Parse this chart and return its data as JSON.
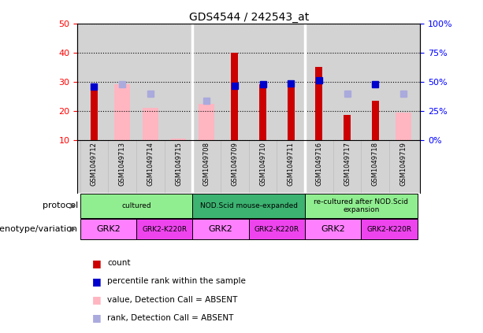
{
  "title": "GDS4544 / 242543_at",
  "samples": [
    "GSM1049712",
    "GSM1049713",
    "GSM1049714",
    "GSM1049715",
    "GSM1049708",
    "GSM1049709",
    "GSM1049710",
    "GSM1049711",
    "GSM1049716",
    "GSM1049717",
    "GSM1049718",
    "GSM1049719"
  ],
  "count_values": [
    27.5,
    null,
    null,
    null,
    null,
    40.0,
    29.0,
    29.5,
    35.0,
    18.5,
    23.5,
    null
  ],
  "rank_values": [
    28.2,
    null,
    null,
    null,
    null,
    28.5,
    29.2,
    29.5,
    30.5,
    null,
    29.0,
    null
  ],
  "absent_value": [
    null,
    29.0,
    21.0,
    10.5,
    22.5,
    null,
    null,
    null,
    null,
    null,
    null,
    19.5
  ],
  "absent_rank": [
    null,
    29.0,
    26.0,
    null,
    23.5,
    null,
    null,
    null,
    null,
    26.0,
    null,
    26.0
  ],
  "ylim_left": [
    10,
    50
  ],
  "ylim_right": [
    0,
    100
  ],
  "yticks_left": [
    10,
    20,
    30,
    40,
    50
  ],
  "yticks_right": [
    0,
    25,
    50,
    75,
    100
  ],
  "ytick_labels_right": [
    "0%",
    "25%",
    "50%",
    "75%",
    "100%"
  ],
  "count_color": "#CC0000",
  "rank_color": "#0000CC",
  "absent_value_color": "#FFB6C1",
  "absent_rank_color": "#AAAADD",
  "plot_bg_color": "#D3D3D3",
  "bg_color": "#FFFFFF",
  "proto_color_light": "#90EE90",
  "proto_color_dark": "#3CB371",
  "geno_color_light": "#FF80FF",
  "geno_color_dark": "#EE44EE",
  "separator_color": "#FFFFFF",
  "proto_groups": [
    {
      "label": "cultured",
      "start": 0,
      "end": 3
    },
    {
      "label": "NOD.Scid mouse-expanded",
      "start": 4,
      "end": 7
    },
    {
      "label": "re-cultured after NOD.Scid\nexpansion",
      "start": 8,
      "end": 11
    }
  ],
  "geno_groups": [
    {
      "label": "GRK2",
      "start": 0,
      "end": 1,
      "dark": false
    },
    {
      "label": "GRK2-K220R",
      "start": 2,
      "end": 3,
      "dark": true
    },
    {
      "label": "GRK2",
      "start": 4,
      "end": 5,
      "dark": false
    },
    {
      "label": "GRK2-K220R",
      "start": 6,
      "end": 7,
      "dark": true
    },
    {
      "label": "GRK2",
      "start": 8,
      "end": 9,
      "dark": false
    },
    {
      "label": "GRK2-K220R",
      "start": 10,
      "end": 11,
      "dark": true
    }
  ]
}
